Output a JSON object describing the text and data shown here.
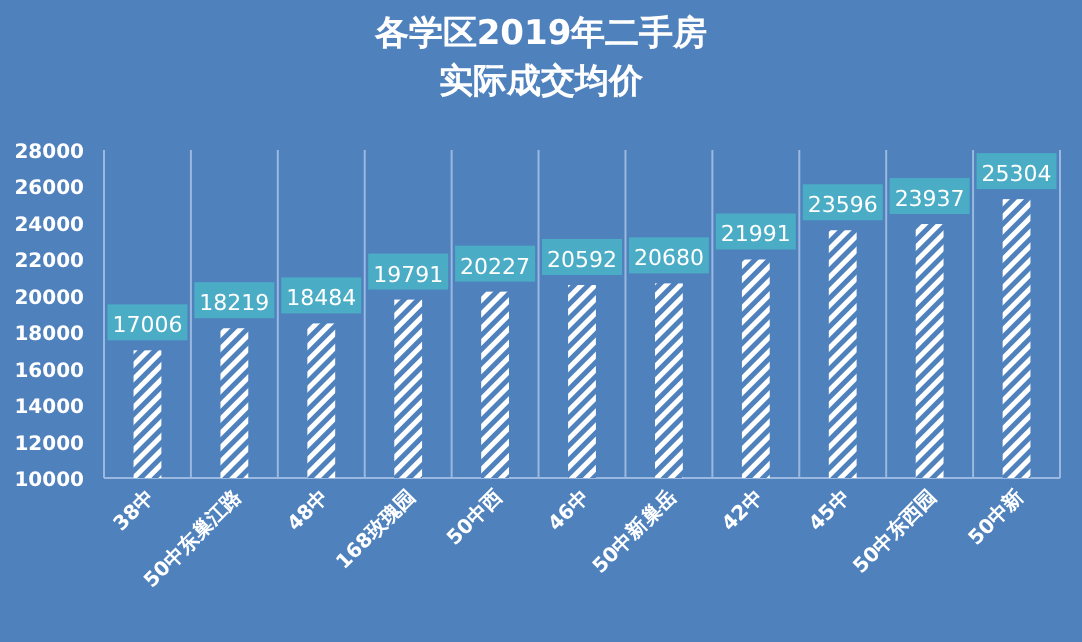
{
  "chart_data": {
    "type": "bar",
    "title": "各学区2019年二手房",
    "subtitle": "实际成交均价",
    "categories": [
      "38中",
      "50中东巢江路",
      "48中",
      "168玫瑰园",
      "50中西",
      "46中",
      "50中新巢岳",
      "42中",
      "45中",
      "50中东西园",
      "50中新"
    ],
    "values": [
      17006,
      18219,
      18484,
      19791,
      20227,
      20592,
      20680,
      21991,
      23596,
      23937,
      25304
    ],
    "color": "#ffffff",
    "ylim": [
      10000,
      28000
    ],
    "yticks": [
      10000,
      12000,
      14000,
      16000,
      18000,
      20000,
      22000,
      24000,
      26000,
      28000
    ],
    "grid": "x",
    "data_labels": true
  }
}
